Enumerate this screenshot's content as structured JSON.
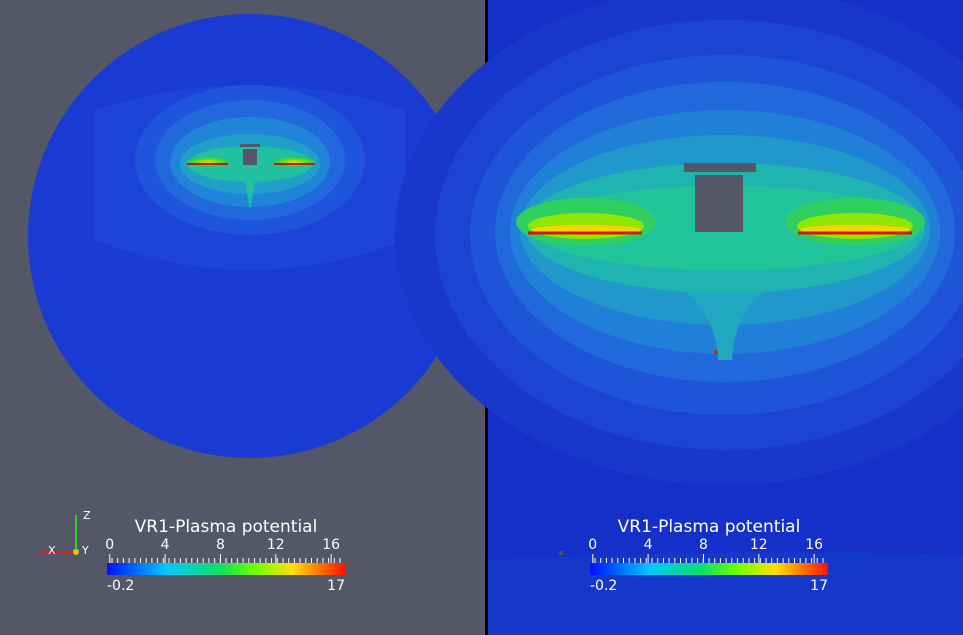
{
  "panels": [
    {
      "colorbar": {
        "title": "VR1-Plasma potential",
        "range": [
          -0.2,
          17
        ],
        "ticks": [
          0,
          4,
          8,
          12,
          16
        ]
      },
      "axes": {
        "z": "Z",
        "x": "X",
        "y": "Y"
      }
    },
    {
      "colorbar": {
        "title": "VR1-Plasma potential",
        "range": [
          -0.2,
          17
        ],
        "ticks": [
          0,
          4,
          8,
          12,
          16
        ]
      }
    }
  ]
}
